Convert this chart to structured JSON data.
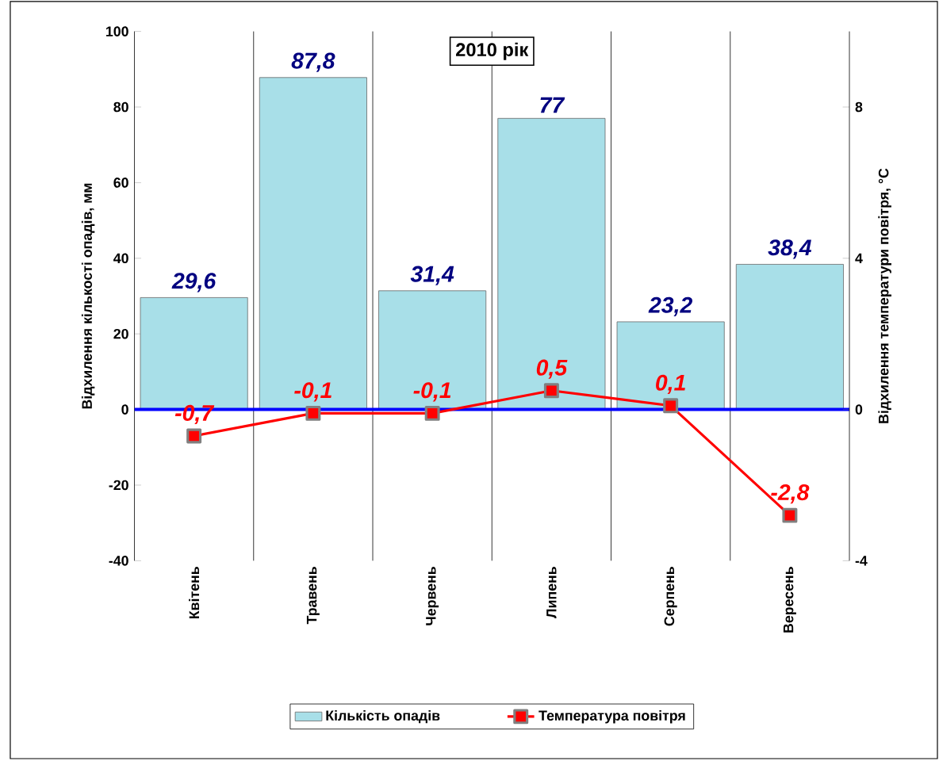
{
  "chart_data": {
    "type": "bar",
    "title": "2010 рік",
    "ylabel": "Відхилення кількості опадів, мм",
    "y2label": "Відхилення температури повітря, °С",
    "categories": [
      "Квітень",
      "Травень",
      "Червень",
      "Липень",
      "Серпень",
      "Вересень"
    ],
    "series": [
      {
        "name": "Кількість опадів",
        "color": "#a8dfe8",
        "values": [
          29.6,
          87.8,
          31.4,
          77,
          23.2,
          38.4
        ],
        "value_labels": [
          "29,6",
          "87,8",
          "31,4",
          "77",
          "23,2",
          "38,4"
        ]
      },
      {
        "name": "Температура повітря",
        "type": "line",
        "axis": "y2",
        "color": "#ff0000",
        "marker": "square",
        "line_style": "solid",
        "values": [
          -0.7,
          -0.1,
          -0.1,
          0.5,
          0.1,
          -2.8
        ],
        "value_labels": [
          "-0,7",
          "-0,1",
          "-0,1",
          "0,5",
          "0,1",
          "-2,8"
        ]
      }
    ],
    "ylim": [
      -40,
      100
    ],
    "yticks": [
      -40,
      -20,
      0,
      20,
      40,
      60,
      80,
      100
    ],
    "y2lim": [
      -4,
      10
    ],
    "y2ticks": [
      -4,
      0,
      4,
      8
    ],
    "ref_lines": [
      {
        "axis": "y",
        "value": 0,
        "color": "#0000ff"
      }
    ],
    "grid": "x",
    "legend": "bottom"
  }
}
